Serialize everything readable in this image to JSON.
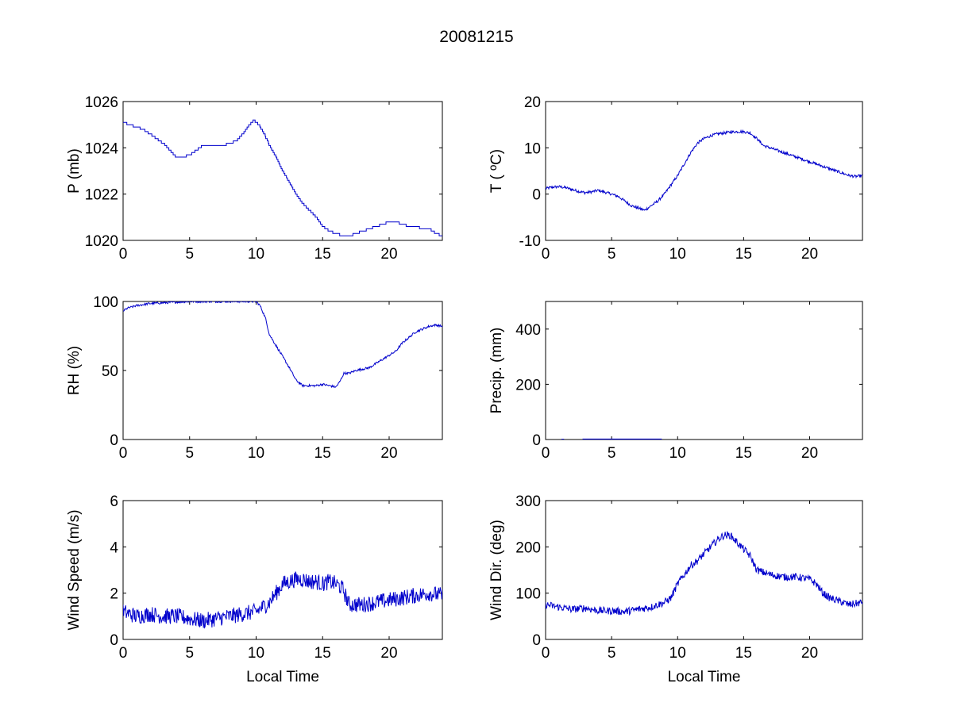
{
  "title": "20081215",
  "colors": {
    "line": "#0000cc",
    "axes": "#000000",
    "background": "#ffffff"
  },
  "chart_data": [
    {
      "type": "line",
      "id": "pressure",
      "ylabel": "P (mb)",
      "xlabel": "",
      "xlim": [
        0,
        24
      ],
      "ylim": [
        1020,
        1026
      ],
      "xticks": [
        0,
        5,
        10,
        15,
        20
      ],
      "yticks": [
        1020,
        1022,
        1024,
        1026
      ],
      "style": "step",
      "x": [
        0,
        0.5,
        1,
        1.5,
        2,
        2.5,
        3,
        3.5,
        4,
        4.5,
        5,
        5.5,
        6,
        6.5,
        7,
        7.5,
        8,
        8.5,
        9,
        9.5,
        9.8,
        10.2,
        10.6,
        11,
        11.5,
        12,
        12.5,
        13,
        13.5,
        14,
        14.5,
        15,
        15.5,
        16,
        16.5,
        17,
        17.5,
        18,
        18.5,
        19,
        19.5,
        20,
        20.5,
        21,
        21.5,
        22,
        22.5,
        23,
        23.5,
        24
      ],
      "values": [
        1025.1,
        1025.0,
        1024.9,
        1024.8,
        1024.6,
        1024.4,
        1024.2,
        1023.9,
        1023.6,
        1023.6,
        1023.7,
        1023.9,
        1024.1,
        1024.1,
        1024.1,
        1024.1,
        1024.2,
        1024.3,
        1024.6,
        1025.0,
        1025.2,
        1025.0,
        1024.6,
        1024.1,
        1023.6,
        1023.0,
        1022.5,
        1022.0,
        1021.6,
        1021.3,
        1021.0,
        1020.6,
        1020.4,
        1020.3,
        1020.2,
        1020.2,
        1020.3,
        1020.4,
        1020.5,
        1020.6,
        1020.7,
        1020.8,
        1020.8,
        1020.7,
        1020.6,
        1020.6,
        1020.5,
        1020.5,
        1020.3,
        1020.2
      ],
      "noise": 0
    },
    {
      "type": "line",
      "id": "temperature",
      "ylabel": "T ( ºC)",
      "xlabel": "",
      "xlim": [
        0,
        24
      ],
      "ylim": [
        -10,
        20
      ],
      "xticks": [
        0,
        5,
        10,
        15,
        20
      ],
      "yticks": [
        -10,
        0,
        10,
        20
      ],
      "style": "line",
      "x": [
        0,
        0.5,
        1,
        1.5,
        2,
        2.5,
        3,
        3.5,
        4,
        4.5,
        5,
        5.5,
        6,
        6.5,
        7,
        7.5,
        8,
        8.5,
        9,
        9.5,
        10,
        10.5,
        11,
        11.5,
        12,
        12.5,
        13,
        13.5,
        14,
        14.5,
        15,
        15.5,
        16,
        16.5,
        17,
        17.5,
        18,
        18.5,
        19,
        19.5,
        20,
        20.5,
        21,
        21.5,
        22,
        22.5,
        23,
        23.5,
        24
      ],
      "values": [
        1.2,
        1.5,
        1.6,
        1.4,
        1.0,
        0.6,
        0.3,
        0.5,
        0.8,
        0.4,
        0.0,
        -0.5,
        -1.5,
        -2.5,
        -3.0,
        -3.5,
        -2.5,
        -1.5,
        0.0,
        2.0,
        4.0,
        6.5,
        9.0,
        11.0,
        12.0,
        12.6,
        13.0,
        13.2,
        13.4,
        13.5,
        13.5,
        13.2,
        12.0,
        10.5,
        10.0,
        9.5,
        9.0,
        8.5,
        8.0,
        7.5,
        7.0,
        6.5,
        6.0,
        5.5,
        5.0,
        4.5,
        4.0,
        3.8,
        4.0
      ],
      "noise": 0.3
    },
    {
      "type": "line",
      "id": "humidity",
      "ylabel": "RH (%)",
      "xlabel": "",
      "xlim": [
        0,
        24
      ],
      "ylim": [
        0,
        100
      ],
      "xticks": [
        0,
        5,
        10,
        15,
        20
      ],
      "yticks": [
        0,
        50,
        100
      ],
      "style": "line",
      "x": [
        0,
        0.3,
        1,
        2,
        3,
        4,
        5,
        6,
        7,
        8,
        9,
        10,
        10.3,
        10.7,
        11,
        11.5,
        12,
        12.5,
        13,
        13.5,
        14,
        14.5,
        15,
        15.5,
        16,
        16.3,
        16.6,
        17,
        17.5,
        18,
        18.5,
        19,
        19.5,
        20,
        20.5,
        21,
        21.5,
        22,
        22.5,
        23,
        23.5,
        24
      ],
      "values": [
        93,
        95,
        97,
        98.5,
        99,
        99.5,
        100,
        100,
        100,
        100,
        100,
        100,
        97,
        88,
        76,
        68,
        60,
        52,
        43,
        39,
        39,
        39,
        40,
        39,
        38,
        42,
        48,
        48,
        50,
        51,
        52,
        55,
        58,
        61,
        64,
        70,
        74,
        78,
        80,
        82,
        83,
        82
      ],
      "noise": 0.8
    },
    {
      "type": "line",
      "id": "precipitation",
      "ylabel": "Precip. (mm)",
      "xlabel": "",
      "xlim": [
        0,
        24
      ],
      "ylim": [
        0,
        500
      ],
      "xticks": [
        0,
        5,
        10,
        15,
        20
      ],
      "yticks": [
        0,
        200,
        400
      ],
      "style": "segments",
      "segments": [
        [
          [
            1.2,
            0.5
          ],
          [
            1.4,
            0.5
          ]
        ],
        [
          [
            2.8,
            1
          ],
          [
            8.8,
            1
          ]
        ]
      ],
      "noise": 0
    },
    {
      "type": "line",
      "id": "wind_speed",
      "ylabel": "Wind Speed (m/s)",
      "xlabel": "Local Time",
      "xlim": [
        0,
        24
      ],
      "ylim": [
        0,
        6
      ],
      "xticks": [
        0,
        5,
        10,
        15,
        20
      ],
      "yticks": [
        0,
        2,
        4,
        6
      ],
      "style": "line",
      "x": [
        0,
        1,
        2,
        3,
        4,
        5,
        6,
        7,
        8,
        9,
        10,
        11,
        11.5,
        12,
        12.5,
        13,
        13.5,
        14,
        14.5,
        15,
        15.5,
        16,
        16.5,
        17,
        18,
        19,
        20,
        21,
        22,
        23,
        24
      ],
      "values": [
        1.2,
        1.0,
        1.1,
        1.0,
        1.0,
        0.9,
        0.8,
        0.9,
        1.0,
        1.1,
        1.2,
        1.6,
        2.0,
        2.4,
        2.5,
        2.6,
        2.6,
        2.5,
        2.5,
        2.4,
        2.5,
        2.4,
        2.2,
        1.5,
        1.5,
        1.6,
        1.7,
        1.8,
        1.9,
        2.0,
        1.9
      ],
      "noise": 0.35
    },
    {
      "type": "line",
      "id": "wind_direction",
      "ylabel": "Wind Dir. (deg)",
      "xlabel": "Local Time",
      "xlim": [
        0,
        24
      ],
      "ylim": [
        0,
        300
      ],
      "xticks": [
        0,
        5,
        10,
        15,
        20
      ],
      "yticks": [
        0,
        100,
        200,
        300
      ],
      "style": "line",
      "x": [
        0,
        1,
        2,
        3,
        4,
        5,
        6,
        7,
        8,
        9,
        9.5,
        10,
        10.5,
        11,
        11.5,
        12,
        12.5,
        13,
        13.5,
        14,
        14.5,
        15,
        15.5,
        16,
        17,
        18,
        19,
        20,
        20.5,
        21,
        21.5,
        22,
        22.5,
        23,
        24
      ],
      "values": [
        75,
        70,
        65,
        68,
        62,
        62,
        60,
        65,
        70,
        80,
        90,
        120,
        140,
        160,
        170,
        185,
        200,
        215,
        225,
        225,
        210,
        195,
        180,
        150,
        140,
        135,
        135,
        130,
        120,
        100,
        90,
        85,
        80,
        75,
        80
      ],
      "noise": 8
    }
  ]
}
